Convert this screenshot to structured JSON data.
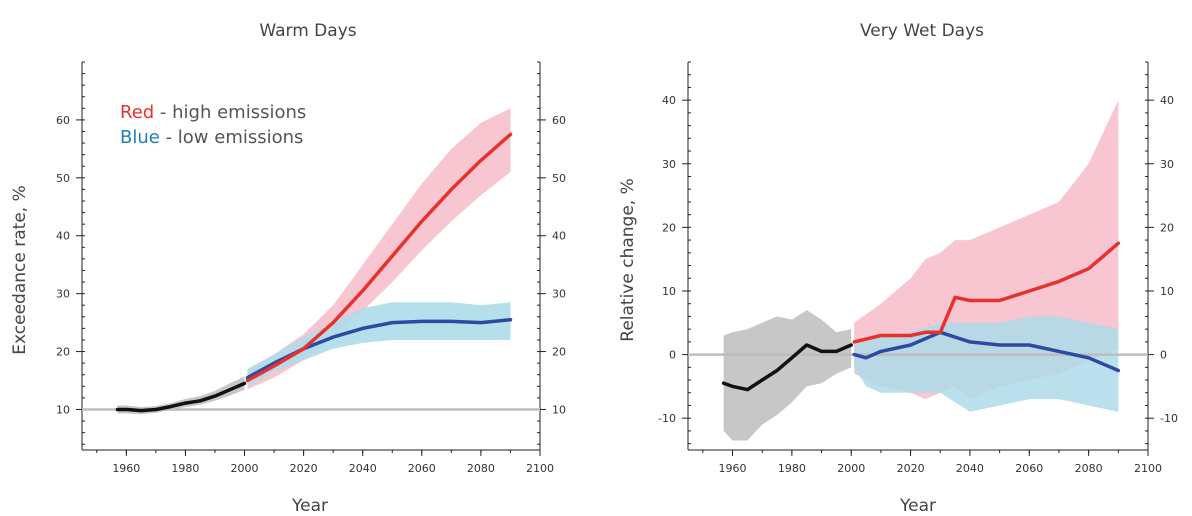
{
  "legend": {
    "red_word": "Red",
    "red_rest": " - high emissions",
    "blue_word": "Blue",
    "blue_rest": " - low emissions"
  },
  "colors": {
    "observed": "#111111",
    "high": "#e8312f",
    "high_band": "#f6bcc8",
    "low": "#2d4aa3",
    "low_band": "#aedbea",
    "obs_band": "#bdbdbd",
    "baseline": "#bdbdbd",
    "red_text": "#e8312f",
    "blue_text": "#1f7fb8"
  },
  "chart_data": [
    {
      "type": "line",
      "title": "Warm Days",
      "xlabel": "Year",
      "ylabel": "Exceedance rate, %",
      "xlim": [
        1945,
        2100
      ],
      "ylim": [
        3,
        70
      ],
      "xticks": [
        1960,
        1980,
        2000,
        2020,
        2040,
        2060,
        2080,
        2100
      ],
      "yticks": [
        10,
        20,
        30,
        40,
        50,
        60
      ],
      "baseline": 10,
      "series": [
        {
          "key": "observed",
          "x": [
            1957,
            1960,
            1965,
            1970,
            1975,
            1980,
            1985,
            1990,
            1995,
            2000
          ],
          "y": [
            10,
            10,
            9.8,
            10,
            10.5,
            11.1,
            11.5,
            12.3,
            13.4,
            14.5
          ],
          "lower": [
            9.3,
            9.3,
            9.2,
            9.4,
            9.9,
            10.4,
            10.8,
            11.5,
            12.4,
            13.4
          ],
          "upper": [
            10.7,
            10.7,
            10.4,
            10.6,
            11.1,
            11.8,
            12.3,
            13.2,
            14.5,
            15.7
          ]
        },
        {
          "key": "high",
          "x": [
            2001,
            2010,
            2020,
            2030,
            2040,
            2050,
            2060,
            2070,
            2080,
            2090
          ],
          "y": [
            15,
            17.5,
            20.5,
            25,
            30.5,
            36.5,
            42.5,
            48,
            53,
            57.5
          ],
          "lower": [
            13.5,
            15.5,
            18.5,
            22.5,
            27,
            32,
            37.5,
            42.5,
            47,
            51
          ],
          "upper": [
            16.5,
            19.5,
            23,
            28,
            35,
            42,
            49,
            55,
            59.5,
            62
          ]
        },
        {
          "key": "low",
          "x": [
            2001,
            2010,
            2020,
            2030,
            2040,
            2050,
            2060,
            2070,
            2080,
            2090
          ],
          "y": [
            15.5,
            18,
            20.5,
            22.5,
            24,
            25,
            25.2,
            25.2,
            25,
            25.5
          ],
          "lower": [
            14,
            16.5,
            18.5,
            20.5,
            21.5,
            22,
            22,
            22,
            22,
            22
          ],
          "upper": [
            17,
            19.5,
            22.5,
            25,
            27.5,
            28.5,
            28.5,
            28.5,
            28,
            28.5
          ]
        }
      ]
    },
    {
      "type": "line",
      "title": "Very Wet Days",
      "xlabel": "Year",
      "ylabel": "Relative change, %",
      "xlim": [
        1945,
        2100
      ],
      "ylim": [
        -15,
        46
      ],
      "xticks": [
        1960,
        1980,
        2000,
        2020,
        2040,
        2060,
        2080,
        2100
      ],
      "yticks": [
        -10,
        0,
        10,
        20,
        30,
        40
      ],
      "baseline": 0,
      "series": [
        {
          "key": "observed",
          "x": [
            1957,
            1960,
            1965,
            1970,
            1975,
            1980,
            1985,
            1990,
            1995,
            2000
          ],
          "y": [
            -4.5,
            -5,
            -5.5,
            -4,
            -2.5,
            -0.5,
            1.5,
            0.5,
            0.5,
            1.5
          ],
          "lower": [
            -12,
            -13.5,
            -13.5,
            -11,
            -9.5,
            -7.5,
            -5,
            -4.5,
            -3,
            -2
          ],
          "upper": [
            3,
            3.5,
            4,
            5,
            6,
            5.5,
            7,
            5.5,
            3.5,
            4
          ]
        },
        {
          "key": "high",
          "x": [
            2001,
            2010,
            2020,
            2025,
            2030,
            2035,
            2040,
            2050,
            2060,
            2070,
            2080,
            2085,
            2090
          ],
          "y": [
            2,
            3,
            3,
            3.5,
            3.5,
            9,
            8.5,
            8.5,
            10,
            11.5,
            13.5,
            15.5,
            17.5
          ],
          "lower": [
            -3,
            -5,
            -6,
            -7,
            -6,
            -5,
            -7,
            -5,
            -4,
            -3,
            -1,
            0,
            1
          ],
          "upper": [
            5,
            8,
            12,
            15,
            16,
            18,
            18,
            20,
            22,
            24,
            30,
            35,
            40
          ]
        },
        {
          "key": "low",
          "x": [
            2001,
            2005,
            2010,
            2020,
            2030,
            2040,
            2050,
            2060,
            2070,
            2080,
            2090
          ],
          "y": [
            0,
            -0.5,
            0.5,
            1.5,
            3.5,
            2,
            1.5,
            1.5,
            0.5,
            -0.5,
            -2.5
          ],
          "lower": [
            -2,
            -5,
            -6,
            -6,
            -6,
            -9,
            -8,
            -7,
            -7,
            -8,
            -9
          ],
          "upper": [
            2,
            2,
            3,
            3.5,
            5,
            5,
            5,
            6,
            6,
            5,
            4
          ]
        }
      ]
    }
  ]
}
